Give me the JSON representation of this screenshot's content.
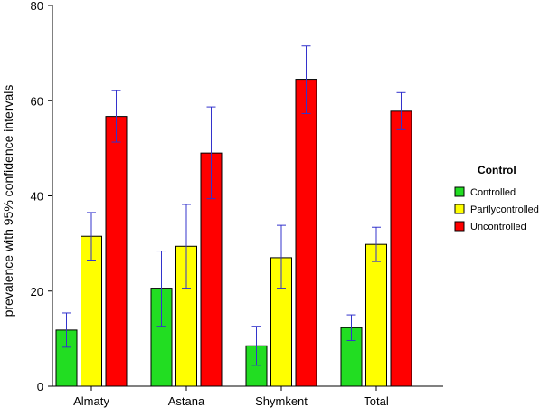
{
  "chart_data": {
    "type": "bar",
    "ylabel": "prevalence with 95% confidence intervals",
    "xlabel": "",
    "ylim": [
      0,
      80
    ],
    "yticks": [
      0,
      20,
      40,
      60,
      80
    ],
    "categories": [
      "Almaty",
      "Astana",
      "Shymkent",
      "Total"
    ],
    "legend_title": "Control",
    "legend_position": "right",
    "grid": false,
    "error_bar_color": "#3333cc",
    "series": [
      {
        "name": "Controlled",
        "color": "#22dd22",
        "values": [
          11.8,
          20.6,
          8.5,
          12.3
        ],
        "ci_low": [
          8.2,
          12.6,
          4.4,
          9.6
        ],
        "ci_high": [
          15.4,
          28.4,
          12.6,
          15.0
        ]
      },
      {
        "name": "Partlycontrolled",
        "color": "#ffff00",
        "values": [
          31.5,
          29.4,
          27.0,
          29.8
        ],
        "ci_low": [
          26.5,
          20.6,
          20.6,
          26.2
        ],
        "ci_high": [
          36.5,
          38.2,
          33.8,
          33.4
        ]
      },
      {
        "name": "Uncontrolled",
        "color": "#ff0000",
        "values": [
          56.7,
          49.0,
          64.5,
          57.8
        ],
        "ci_low": [
          51.3,
          39.4,
          57.3,
          53.9
        ],
        "ci_high": [
          62.1,
          58.7,
          71.5,
          61.7
        ]
      }
    ]
  }
}
